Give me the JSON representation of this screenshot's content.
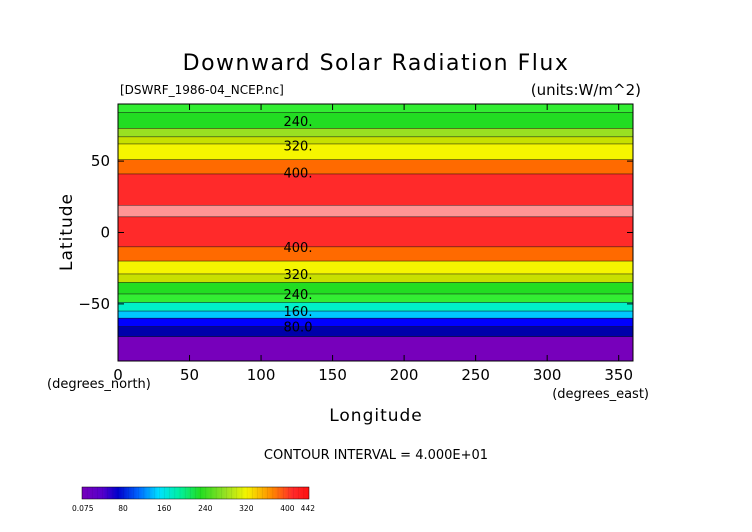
{
  "chart_data": {
    "type": "heatmap",
    "title": "Downward Solar Radiation Flux",
    "source_label": "[DSWRF_1986-04_NCEP.nc]",
    "units_label": "(units:W/m^2)",
    "xlabel": "Longitude",
    "ylabel": "Latitude",
    "x_unit_label": "(degrees_east)",
    "y_unit_label": "(degrees_north)",
    "xlim": [
      0,
      360
    ],
    "ylim": [
      -90,
      90
    ],
    "x_ticks": [
      0,
      50,
      100,
      150,
      200,
      250,
      300,
      350
    ],
    "y_ticks": [
      50,
      0,
      -50
    ],
    "contour_interval_label": "CONTOUR INTERVAL = 4.000E+01",
    "contour_levels": [
      40,
      80,
      120,
      160,
      200,
      240,
      280,
      320,
      360,
      400,
      440
    ],
    "contour_labels": [
      {
        "text": "240.",
        "lat": 78
      },
      {
        "text": "320.",
        "lat": 61
      },
      {
        "text": "400.",
        "lat": 42
      },
      {
        "text": "400.",
        "lat": -10
      },
      {
        "text": "320.",
        "lat": -29
      },
      {
        "text": "240.",
        "lat": -43
      },
      {
        "text": "160.",
        "lat": -55
      },
      {
        "text": "80.0",
        "lat": -66
      }
    ],
    "bands": [
      {
        "lat_from": 90,
        "lat_to": 84,
        "color": "#33ee33"
      },
      {
        "lat_from": 84,
        "lat_to": 73,
        "color": "#22dd22"
      },
      {
        "lat_from": 73,
        "lat_to": 67,
        "color": "#99e022"
      },
      {
        "lat_from": 67,
        "lat_to": 62,
        "color": "#c8e000"
      },
      {
        "lat_from": 62,
        "lat_to": 51,
        "color": "#f5f500"
      },
      {
        "lat_from": 51,
        "lat_to": 41,
        "color": "#ff6a00"
      },
      {
        "lat_from": 41,
        "lat_to": 19,
        "color": "#ff2a2a"
      },
      {
        "lat_from": 19,
        "lat_to": 11,
        "color": "#ff9494"
      },
      {
        "lat_from": 11,
        "lat_to": -10,
        "color": "#ff2a2a"
      },
      {
        "lat_from": -10,
        "lat_to": -20,
        "color": "#ff6a00"
      },
      {
        "lat_from": -20,
        "lat_to": -29,
        "color": "#f5f500"
      },
      {
        "lat_from": -29,
        "lat_to": -35,
        "color": "#c8e000"
      },
      {
        "lat_from": -35,
        "lat_to": -43,
        "color": "#22dd22"
      },
      {
        "lat_from": -43,
        "lat_to": -49,
        "color": "#33ee33"
      },
      {
        "lat_from": -49,
        "lat_to": -55,
        "color": "#00f0c8"
      },
      {
        "lat_from": -55,
        "lat_to": -60,
        "color": "#00c8ff"
      },
      {
        "lat_from": -60,
        "lat_to": -66,
        "color": "#0000ff"
      },
      {
        "lat_from": -66,
        "lat_to": -73,
        "color": "#0000aa"
      },
      {
        "lat_from": -73,
        "lat_to": -90,
        "color": "#7700bb"
      }
    ],
    "colorbar": {
      "labels": [
        {
          "text": "0.075",
          "value": 0.075
        },
        {
          "text": "80",
          "value": 80
        },
        {
          "text": "160",
          "value": 160
        },
        {
          "text": "240",
          "value": 240
        },
        {
          "text": "320",
          "value": 320
        },
        {
          "text": "400",
          "value": 400
        },
        {
          "text": "442",
          "value": 442
        }
      ],
      "min": 0.075,
      "max": 442,
      "stops": [
        {
          "value": 0,
          "color": "#7700bb"
        },
        {
          "value": 40,
          "color": "#5500cc"
        },
        {
          "value": 70,
          "color": "#0000cc"
        },
        {
          "value": 110,
          "color": "#0066ff"
        },
        {
          "value": 150,
          "color": "#00e0ff"
        },
        {
          "value": 190,
          "color": "#00f0a0"
        },
        {
          "value": 230,
          "color": "#22dd22"
        },
        {
          "value": 280,
          "color": "#99e022"
        },
        {
          "value": 320,
          "color": "#f5f500"
        },
        {
          "value": 370,
          "color": "#ff8800"
        },
        {
          "value": 410,
          "color": "#ff2a2a"
        },
        {
          "value": 442,
          "color": "#ff1111"
        }
      ]
    }
  }
}
